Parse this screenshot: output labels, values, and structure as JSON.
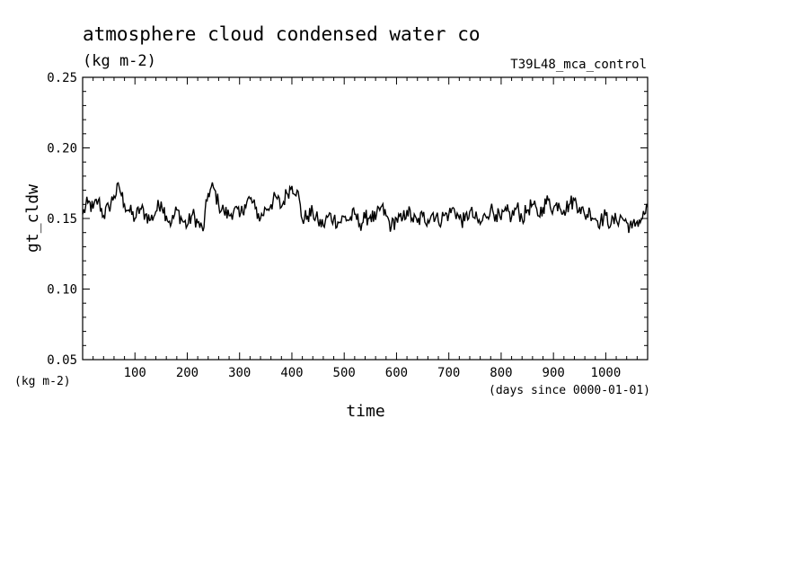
{
  "chart_data": {
    "type": "line",
    "title": "atmosphere cloud condensed water co",
    "units": "(kg m-2)",
    "run_label": "T39L48_mca_control",
    "xlabel": "time",
    "x_units": "(days since 0000-01-01)",
    "ylabel": "gt_cldw",
    "y_units": "(kg m-2)",
    "xlim": [
      0,
      1080
    ],
    "ylim": [
      0.05,
      0.25
    ],
    "x_ticks": [
      "100",
      "200",
      "300",
      "400",
      "500",
      "600",
      "700",
      "800",
      "900",
      "1000"
    ],
    "y_ticks": [
      "0.05",
      "0.10",
      "0.15",
      "0.20",
      "0.25"
    ],
    "grid": false,
    "series": [
      {
        "x": [
          0,
          10,
          20,
          30,
          40,
          50,
          60,
          70,
          80,
          90,
          100,
          110,
          120,
          130,
          140,
          150,
          160,
          170,
          180,
          190,
          200,
          210,
          220,
          230,
          240,
          250,
          260,
          270,
          280,
          290,
          300,
          310,
          320,
          330,
          340,
          350,
          360,
          370,
          380,
          390,
          400,
          410,
          420,
          430,
          440,
          450,
          460,
          470,
          480,
          490,
          500,
          510,
          520,
          530,
          540,
          550,
          560,
          570,
          580,
          590,
          600,
          610,
          620,
          630,
          640,
          650,
          660,
          670,
          680,
          690,
          700,
          710,
          720,
          730,
          740,
          750,
          760,
          770,
          780,
          790,
          800,
          810,
          820,
          830,
          840,
          850,
          860,
          870,
          880,
          890,
          900,
          910,
          920,
          930,
          940,
          950,
          960,
          970,
          980,
          990,
          1000,
          1010,
          1020,
          1030,
          1040,
          1050,
          1060,
          1070,
          1080
        ],
        "y": [
          0.153,
          0.161,
          0.157,
          0.163,
          0.152,
          0.158,
          0.166,
          0.172,
          0.16,
          0.155,
          0.15,
          0.157,
          0.153,
          0.149,
          0.155,
          0.162,
          0.152,
          0.147,
          0.156,
          0.149,
          0.145,
          0.153,
          0.147,
          0.141,
          0.168,
          0.172,
          0.16,
          0.155,
          0.152,
          0.157,
          0.151,
          0.16,
          0.164,
          0.157,
          0.15,
          0.157,
          0.16,
          0.165,
          0.158,
          0.168,
          0.173,
          0.17,
          0.149,
          0.152,
          0.154,
          0.148,
          0.145,
          0.152,
          0.15,
          0.147,
          0.151,
          0.149,
          0.153,
          0.146,
          0.15,
          0.152,
          0.149,
          0.158,
          0.152,
          0.144,
          0.15,
          0.148,
          0.156,
          0.15,
          0.147,
          0.152,
          0.149,
          0.154,
          0.148,
          0.152,
          0.153,
          0.157,
          0.15,
          0.148,
          0.155,
          0.15,
          0.146,
          0.152,
          0.157,
          0.153,
          0.149,
          0.155,
          0.151,
          0.158,
          0.15,
          0.156,
          0.16,
          0.152,
          0.158,
          0.163,
          0.157,
          0.161,
          0.156,
          0.16,
          0.163,
          0.158,
          0.152,
          0.155,
          0.15,
          0.148,
          0.152,
          0.146,
          0.149,
          0.151,
          0.147,
          0.143,
          0.148,
          0.15,
          0.158
        ]
      }
    ]
  }
}
